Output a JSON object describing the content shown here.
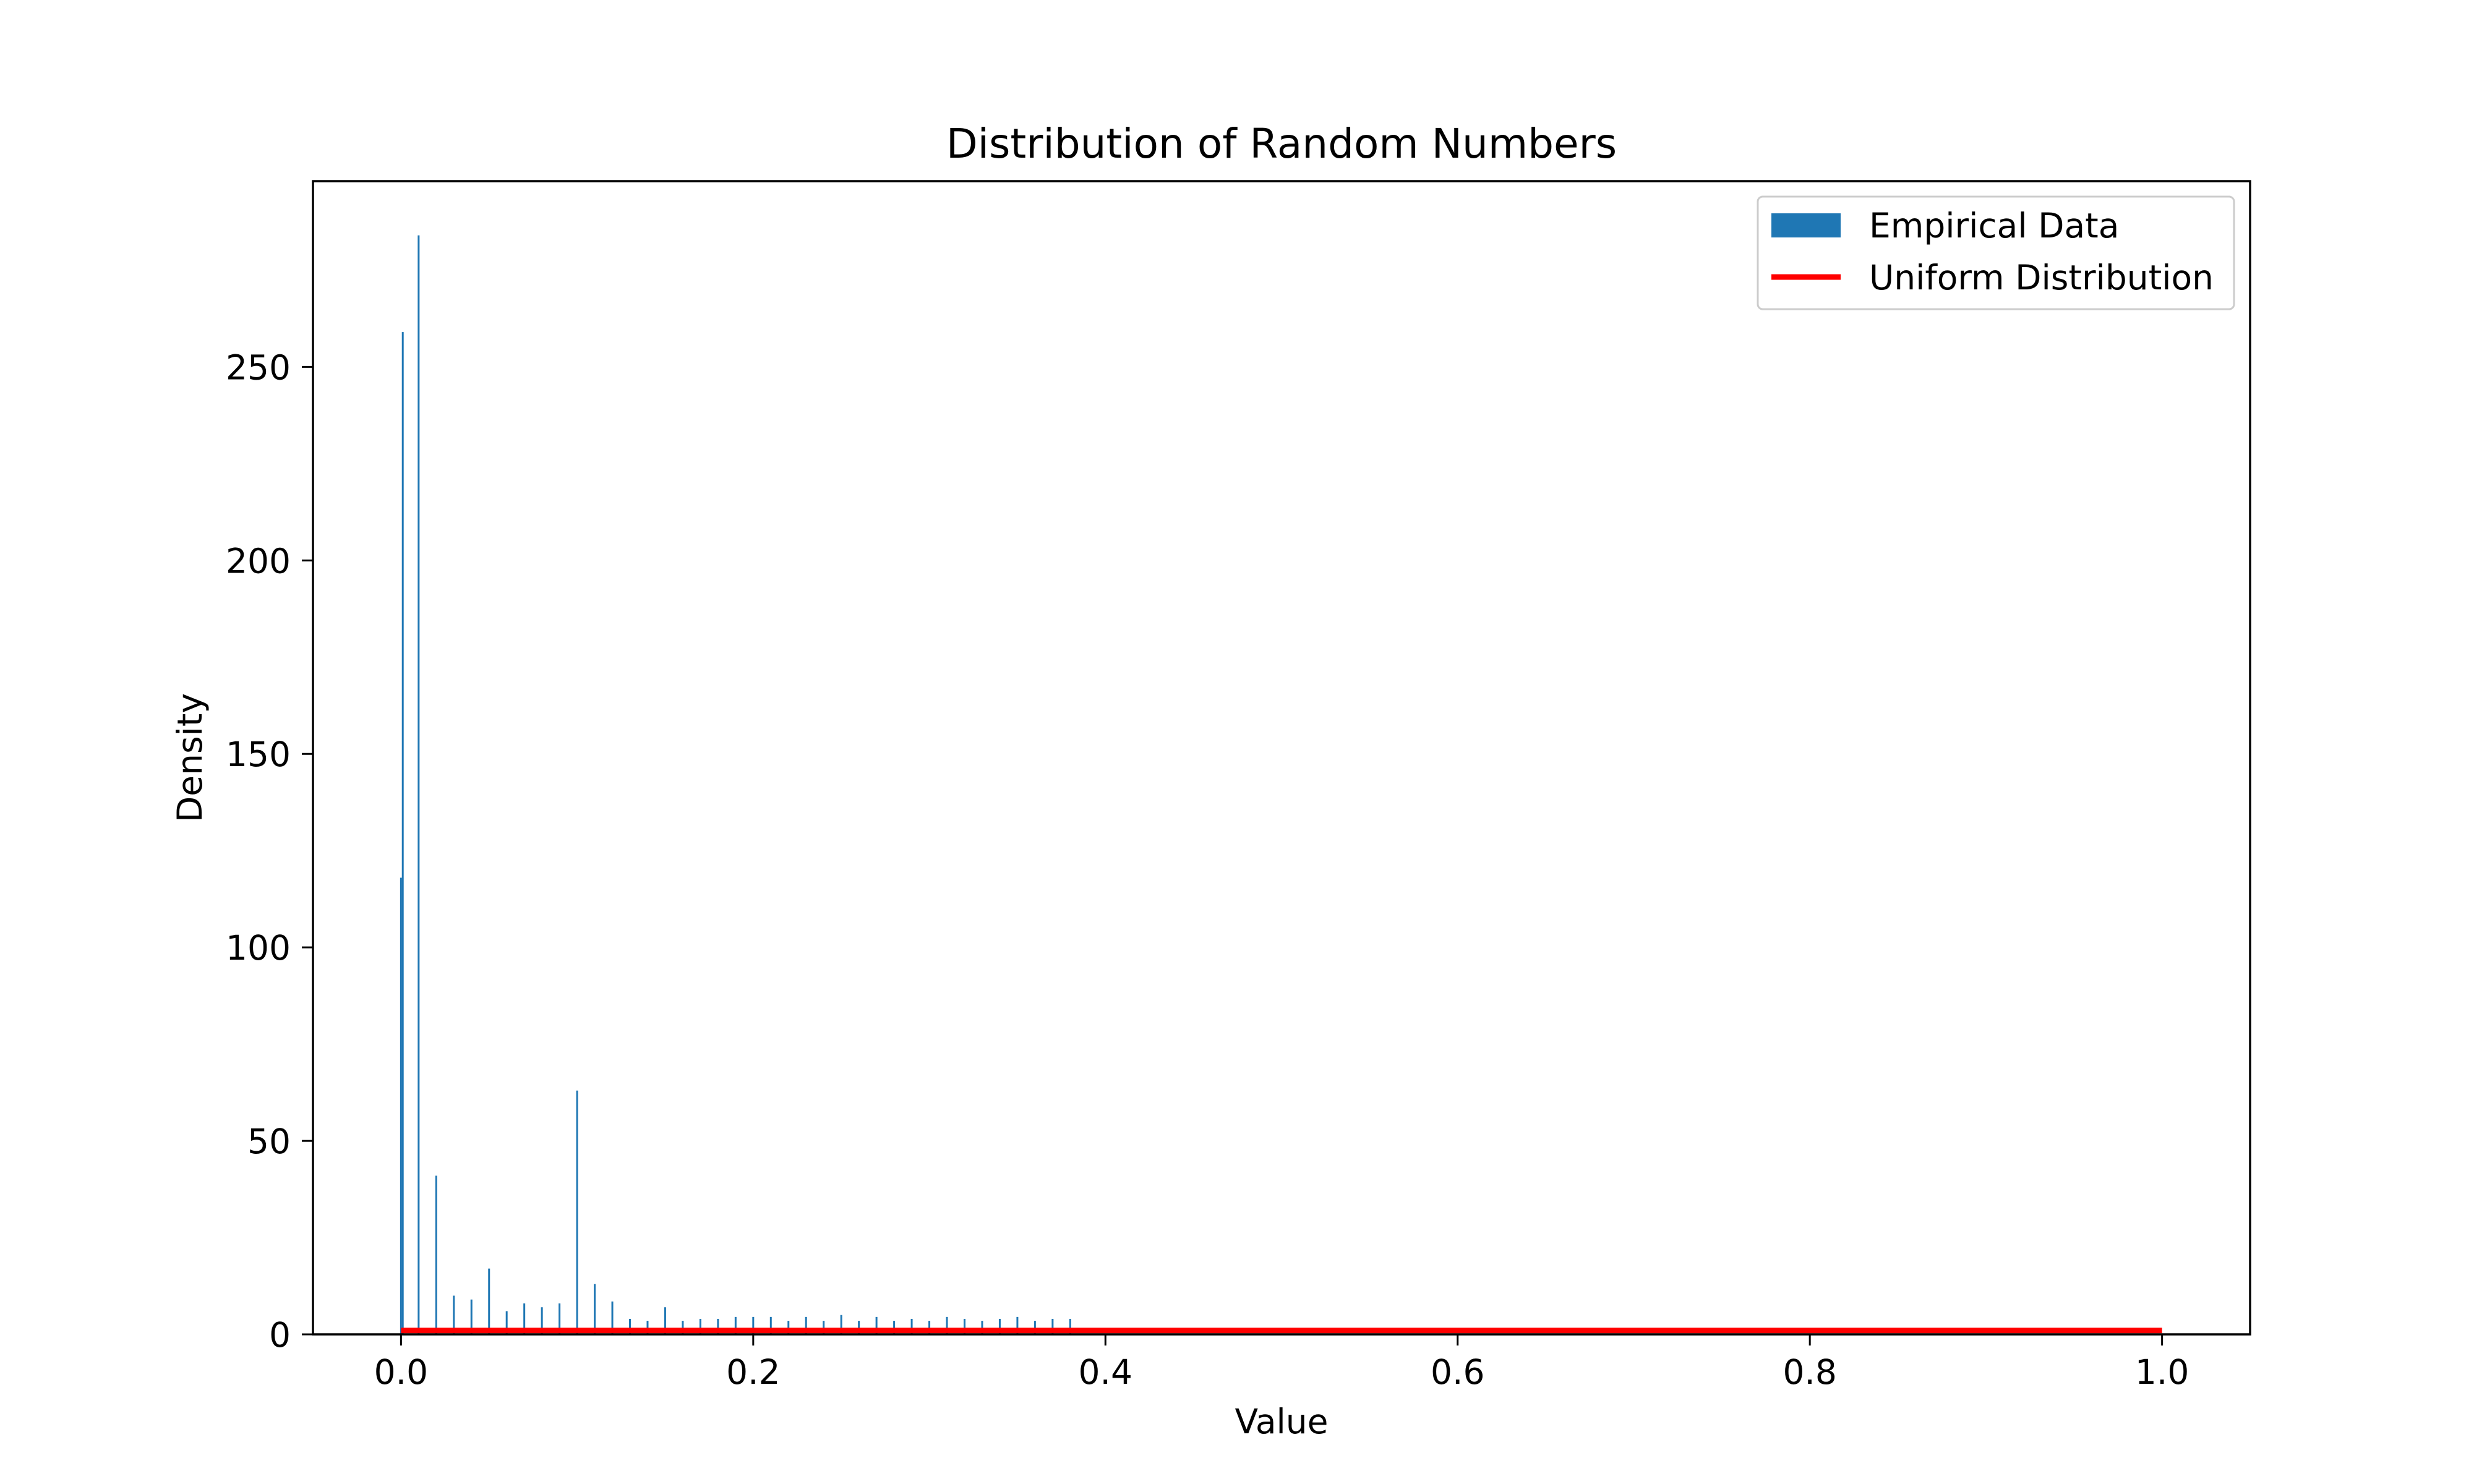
{
  "chart_data": {
    "type": "bar",
    "title": "Distribution of Random Numbers",
    "xlabel": "Value",
    "ylabel": "Density",
    "xlim": [
      -0.05,
      1.05
    ],
    "ylim": [
      0,
      298
    ],
    "xticks": [
      0.0,
      0.2,
      0.4,
      0.6,
      0.8,
      1.0
    ],
    "xtick_labels": [
      "0.0",
      "0.2",
      "0.4",
      "0.6",
      "0.8",
      "1.0"
    ],
    "yticks": [
      0,
      50,
      100,
      150,
      200,
      250
    ],
    "ytick_labels": [
      "0",
      "50",
      "100",
      "150",
      "200",
      "250"
    ],
    "grid": false,
    "legend_position": "top-right",
    "series": [
      {
        "name": "Empirical Data",
        "kind": "histogram",
        "color": "#1f77b4",
        "bin_width": 0.001,
        "x": [
          0.0,
          0.001,
          0.01,
          0.02,
          0.03,
          0.04,
          0.05,
          0.06,
          0.07,
          0.08,
          0.09,
          0.1,
          0.11,
          0.12,
          0.13,
          0.14,
          0.15,
          0.16,
          0.17,
          0.18,
          0.19,
          0.2,
          0.21,
          0.22,
          0.23,
          0.24,
          0.25,
          0.26,
          0.27,
          0.28,
          0.29,
          0.3,
          0.31,
          0.32,
          0.33,
          0.34,
          0.35,
          0.36,
          0.37,
          0.38
        ],
        "values": [
          118,
          259,
          284,
          41,
          10,
          9,
          17,
          6,
          8,
          7,
          8,
          63,
          13,
          8.5,
          4,
          3.5,
          7,
          3.5,
          4,
          4,
          4.5,
          4.5,
          4.5,
          3.5,
          4.5,
          3.5,
          5,
          3.5,
          4.5,
          3.5,
          4,
          3.5,
          4.5,
          4,
          3.5,
          4,
          4.5,
          3.5,
          4,
          4
        ]
      },
      {
        "name": "Uniform Distribution",
        "kind": "line",
        "color": "#ff0000",
        "x": [
          0.0,
          1.0
        ],
        "y": [
          1,
          1
        ]
      }
    ]
  }
}
